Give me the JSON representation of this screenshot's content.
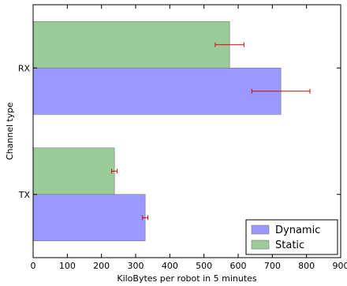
{
  "chart_data": {
    "type": "bar",
    "orientation": "horizontal",
    "categories": [
      "TX",
      "RX"
    ],
    "series": [
      {
        "name": "Dynamic",
        "values": [
          328,
          725
        ],
        "error": [
          8,
          85
        ],
        "color": "#9999ff"
      },
      {
        "name": "Static",
        "values": [
          238,
          575
        ],
        "error": [
          8,
          42
        ],
        "color": "#99cc99"
      }
    ],
    "error_color": "#dd0000",
    "xlabel": "KiloBytes per robot in 5 minutes",
    "ylabel": "Channel type",
    "xlim": [
      0,
      900
    ],
    "xticks": [
      "0",
      "100",
      "200",
      "300",
      "400",
      "500",
      "600",
      "700",
      "800",
      "900"
    ],
    "legend": {
      "position": "bottom-right"
    },
    "grid": false
  }
}
